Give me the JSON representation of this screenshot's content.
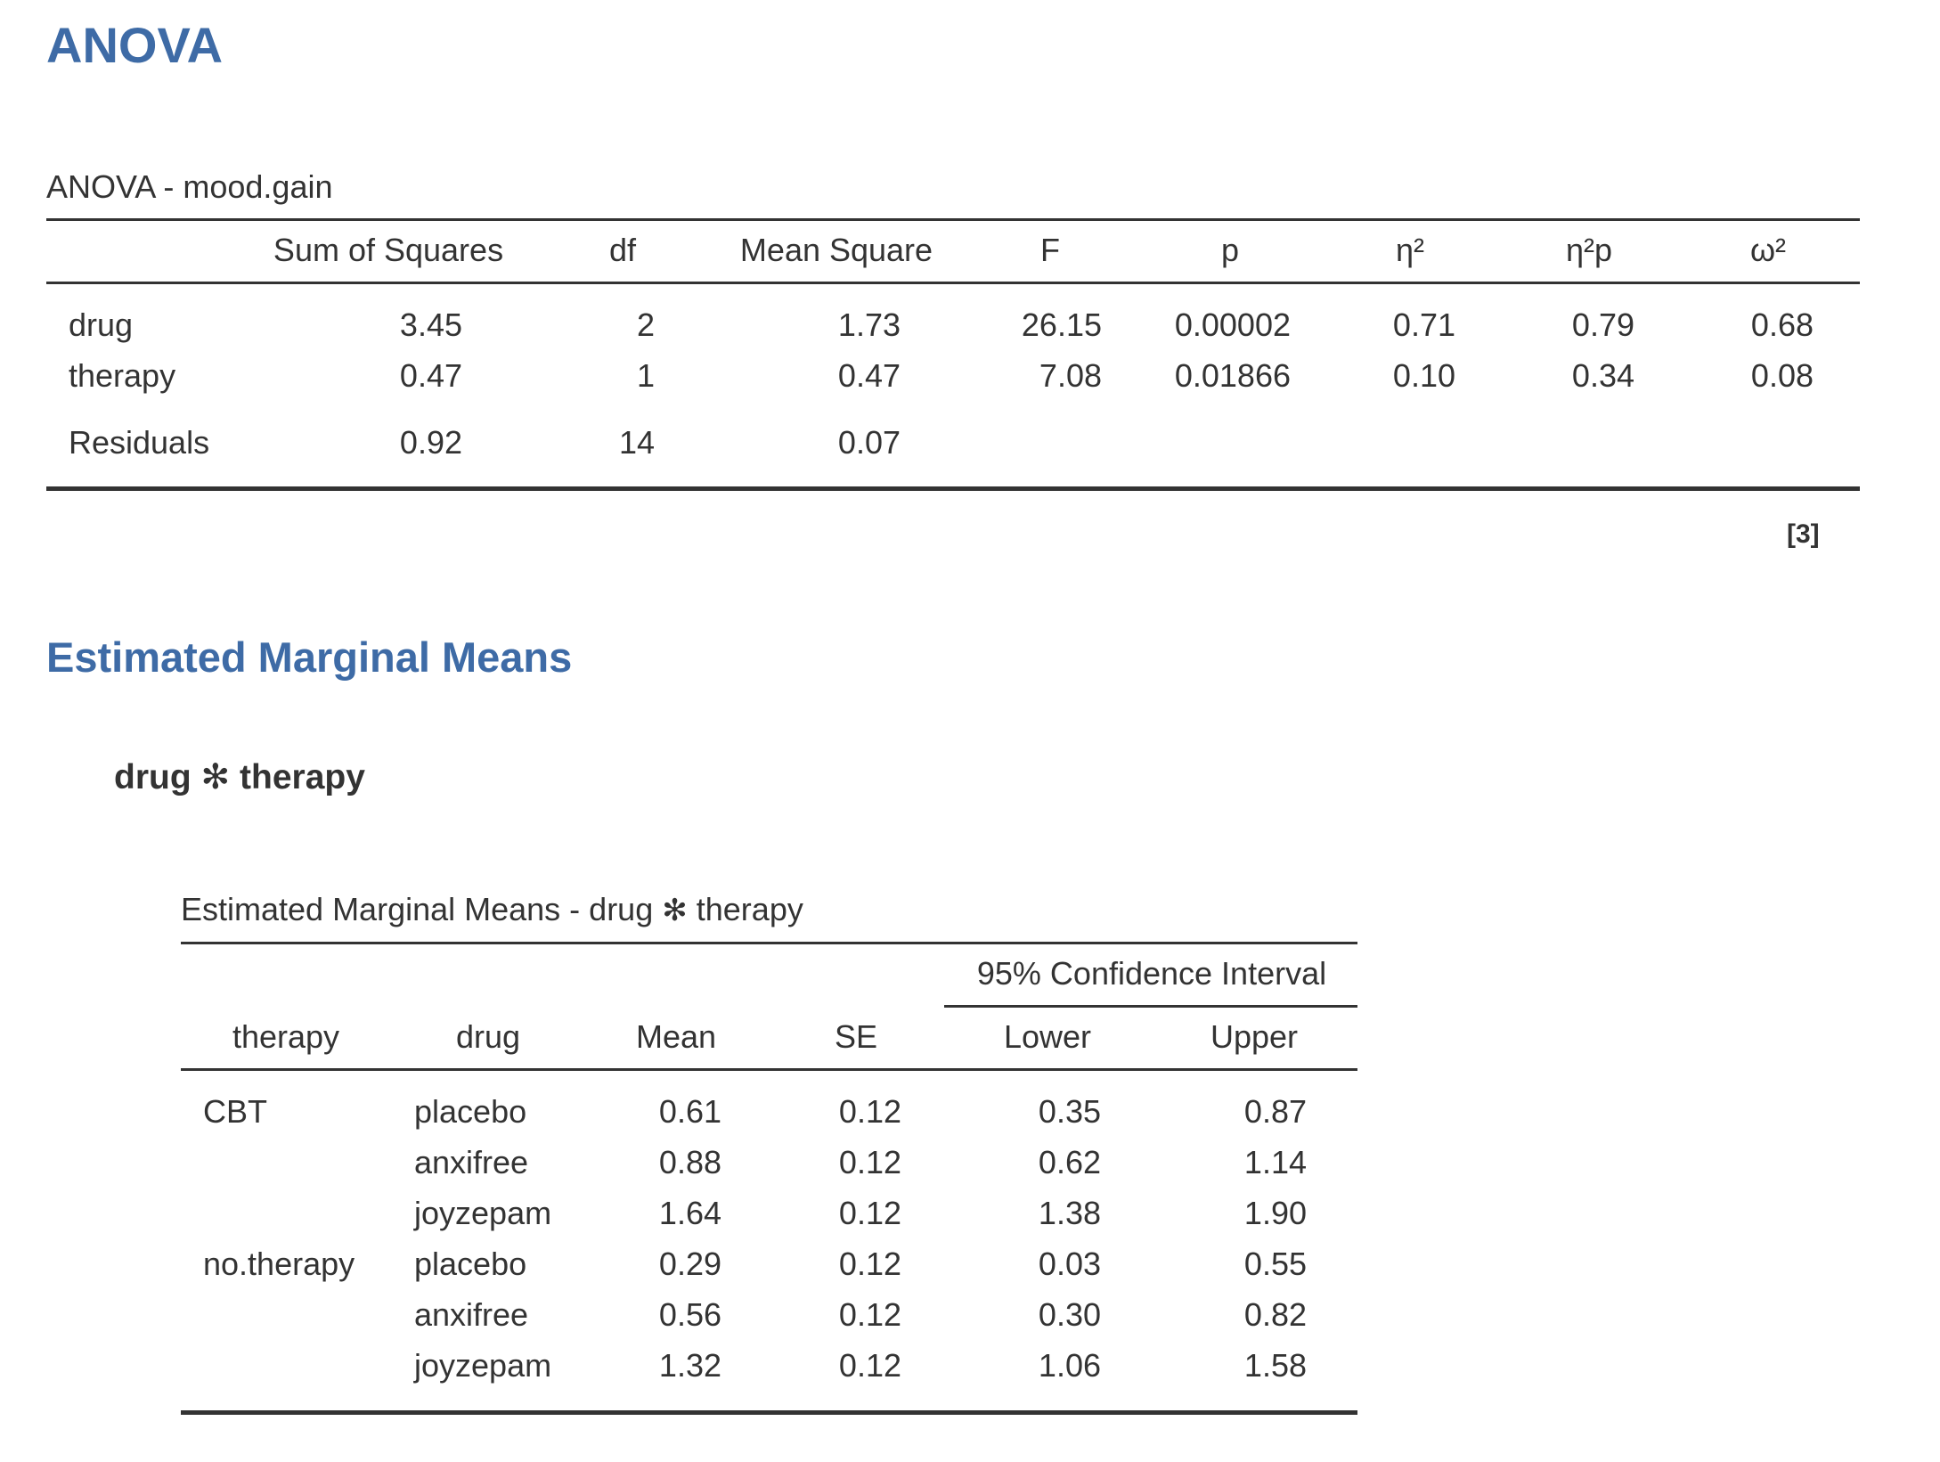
{
  "anova_section": {
    "heading": "ANOVA",
    "table_title": "ANOVA - mood.gain",
    "columns": [
      "Sum of Squares",
      "df",
      "Mean Square",
      "F",
      "p",
      "η²",
      "η²p",
      "ω²"
    ],
    "rows": [
      {
        "term": "drug",
        "ss": "3.45",
        "df": "2",
        "ms": "1.73",
        "f": "26.15",
        "p": "0.00002",
        "eta2": "0.71",
        "eta2p": "0.79",
        "omega2": "0.68"
      },
      {
        "term": "therapy",
        "ss": "0.47",
        "df": "1",
        "ms": "0.47",
        "f": "7.08",
        "p": "0.01866",
        "eta2": "0.10",
        "eta2p": "0.34",
        "omega2": "0.08"
      },
      {
        "term": "Residuals",
        "ss": "0.92",
        "df": "14",
        "ms": "0.07"
      }
    ],
    "footnote_ref": "[3]"
  },
  "emm_section": {
    "heading": "Estimated Marginal Means",
    "subheading_left": "drug",
    "subheading_star": "✻",
    "subheading_right": "therapy",
    "table_title_left": "Estimated Marginal Means - drug",
    "table_title_star": "✻",
    "table_title_right": "therapy",
    "ci_header": "95% Confidence Interval",
    "columns": [
      "therapy",
      "drug",
      "Mean",
      "SE",
      "Lower",
      "Upper"
    ],
    "rows": [
      {
        "therapy": "CBT",
        "drug": "placebo",
        "mean": "0.61",
        "se": "0.12",
        "lower": "0.35",
        "upper": "0.87"
      },
      {
        "therapy": "",
        "drug": "anxifree",
        "mean": "0.88",
        "se": "0.12",
        "lower": "0.62",
        "upper": "1.14"
      },
      {
        "therapy": "",
        "drug": "joyzepam",
        "mean": "1.64",
        "se": "0.12",
        "lower": "1.38",
        "upper": "1.90"
      },
      {
        "therapy": "no.therapy",
        "drug": "placebo",
        "mean": "0.29",
        "se": "0.12",
        "lower": "0.03",
        "upper": "0.55"
      },
      {
        "therapy": "",
        "drug": "anxifree",
        "mean": "0.56",
        "se": "0.12",
        "lower": "0.30",
        "upper": "0.82"
      },
      {
        "therapy": "",
        "drug": "joyzepam",
        "mean": "1.32",
        "se": "0.12",
        "lower": "1.06",
        "upper": "1.58"
      }
    ]
  },
  "colors": {
    "heading": "#3e6ba6",
    "text": "#333333",
    "rule": "#333333"
  }
}
